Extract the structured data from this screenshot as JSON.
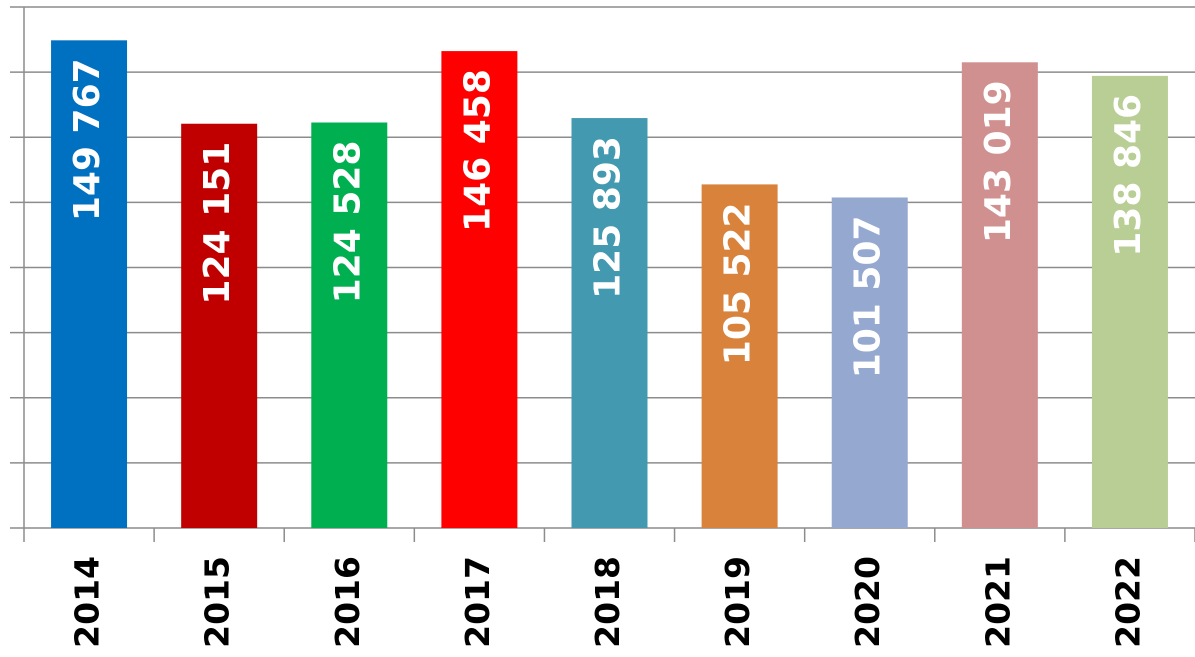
{
  "chart_data": {
    "type": "bar",
    "categories": [
      "2014",
      "2015",
      "2016",
      "2017",
      "2018",
      "2019",
      "2020",
      "2021",
      "2022"
    ],
    "values": [
      149767,
      124151,
      124528,
      146458,
      125893,
      105522,
      101507,
      143019,
      138846
    ],
    "value_labels": [
      "149 767",
      "124 151",
      "124 528",
      "146 458",
      "125 893",
      "105 522",
      "101 507",
      "143 019",
      "138 846"
    ],
    "colors": [
      "#0070c0",
      "#c00000",
      "#00b050",
      "#ff0000",
      "#4399b0",
      "#d9823b",
      "#95a9d0",
      "#d09090",
      "#b9ce95"
    ],
    "ylim": [
      0,
      160000
    ],
    "yticks": [
      0,
      20000,
      40000,
      60000,
      80000,
      100000,
      120000,
      140000,
      160000
    ],
    "grid": true
  }
}
